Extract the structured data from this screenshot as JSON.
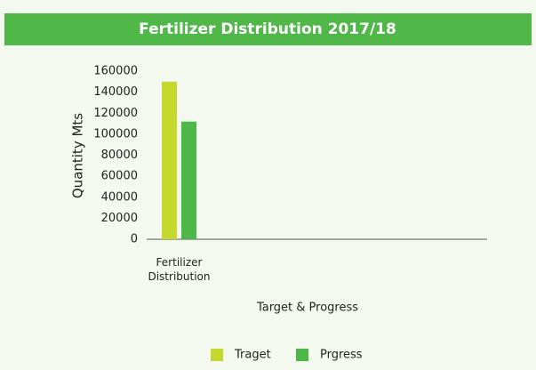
{
  "chart_data": {
    "type": "bar",
    "title": "Fertilizer Distribution 2017/18",
    "y_label": "Quantity Mts",
    "x_label": "Target & Progress",
    "categories": [
      "Fertilizer Distribution"
    ],
    "series": [
      {
        "name": "Traget",
        "color": "#c5d82e",
        "values": [
          150000
        ]
      },
      {
        "name": "Prgress",
        "color": "#4db848",
        "values": [
          112000
        ]
      }
    ],
    "ylim": [
      0,
      160000
    ],
    "yticks": [
      0,
      20000,
      40000,
      60000,
      80000,
      100000,
      120000,
      140000,
      160000
    ],
    "grid": false,
    "legend": "bottom"
  }
}
